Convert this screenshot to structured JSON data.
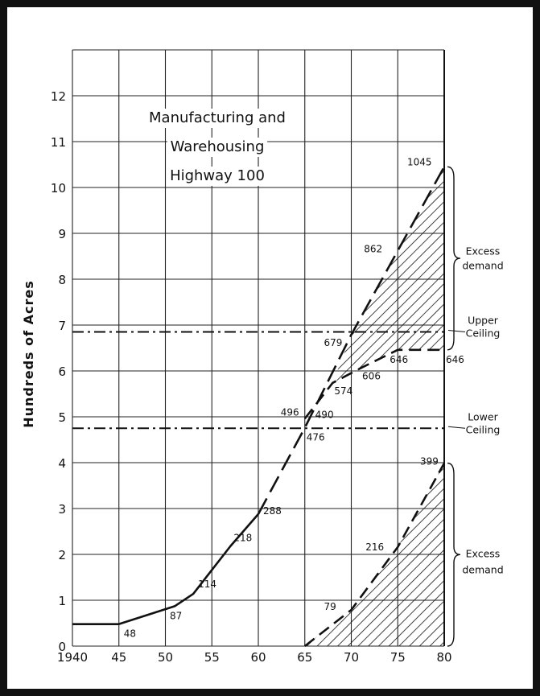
{
  "chart_data": {
    "type": "line",
    "title_lines": [
      "Manufacturing and",
      "Warehousing",
      "Highway 100"
    ],
    "ylabel": "Hundreds of Acres",
    "xlabel": "",
    "xlim": [
      1940,
      1980
    ],
    "ylim": [
      0,
      13
    ],
    "x_ticks": [
      {
        "value": 1940,
        "label": "1940"
      },
      {
        "value": 1945,
        "label": "45"
      },
      {
        "value": 1950,
        "label": "50"
      },
      {
        "value": 1955,
        "label": "55"
      },
      {
        "value": 1960,
        "label": "60"
      },
      {
        "value": 1965,
        "label": "65"
      },
      {
        "value": 1970,
        "label": "70"
      },
      {
        "value": 1975,
        "label": "75"
      },
      {
        "value": 1980,
        "label": "80"
      }
    ],
    "y_ticks": [
      {
        "value": 0,
        "label": "0"
      },
      {
        "value": 1,
        "label": "1"
      },
      {
        "value": 2,
        "label": "2"
      },
      {
        "value": 3,
        "label": "3"
      },
      {
        "value": 4,
        "label": "4"
      },
      {
        "value": 5,
        "label": "5"
      },
      {
        "value": 6,
        "label": "6"
      },
      {
        "value": 7,
        "label": "7"
      },
      {
        "value": 8,
        "label": "8"
      },
      {
        "value": 9,
        "label": "9"
      },
      {
        "value": 10,
        "label": "10"
      },
      {
        "value": 11,
        "label": "11"
      },
      {
        "value": 12,
        "label": "12"
      }
    ],
    "grid": true,
    "series": [
      {
        "style": "solid",
        "points": [
          {
            "x": 1940,
            "y": 0.48,
            "label": ""
          },
          {
            "x": 1945,
            "y": 0.48,
            "label": "48"
          },
          {
            "x": 1951,
            "y": 0.87,
            "label": "87"
          },
          {
            "x": 1953,
            "y": 1.14,
            "label": "114"
          },
          {
            "x": 1957,
            "y": 2.18,
            "label": "218"
          },
          {
            "x": 1960,
            "y": 2.88,
            "label": "288"
          }
        ]
      },
      {
        "style": "long-dash",
        "points": [
          {
            "x": 1960,
            "y": 2.88,
            "label": ""
          },
          {
            "x": 1965,
            "y": 4.76,
            "label": "476"
          },
          {
            "x": 1970,
            "y": 6.79,
            "label": "679"
          },
          {
            "x": 1975,
            "y": 8.62,
            "label": "862"
          },
          {
            "x": 1980,
            "y": 10.45,
            "label": "1045"
          }
        ]
      },
      {
        "style": "dash",
        "points": [
          {
            "x": 1965,
            "y": 4.96,
            "label": "496"
          },
          {
            "x": 1968,
            "y": 5.74,
            "label": "574"
          },
          {
            "x": 1971,
            "y": 6.06,
            "label": "606"
          },
          {
            "x": 1975,
            "y": 6.46,
            "label": "646"
          },
          {
            "x": 1980,
            "y": 6.46,
            "label": "646"
          }
        ]
      },
      {
        "style": "dash",
        "points": [
          {
            "x": 1965,
            "y": 0,
            "label": ""
          },
          {
            "x": 1970,
            "y": 0.79,
            "label": "79"
          },
          {
            "x": 1975,
            "y": 2.16,
            "label": "216"
          },
          {
            "x": 1980,
            "y": 3.99,
            "label": "399"
          }
        ]
      }
    ],
    "extra_labels": [
      {
        "x": 1965.6,
        "y": 4.9,
        "label": "490"
      }
    ],
    "reference_lines": [
      {
        "y": 6.85,
        "label": [
          "Upper",
          "Ceiling"
        ]
      },
      {
        "y": 4.75,
        "label": [
          "Lower",
          "Ceiling"
        ]
      }
    ],
    "shaded_regions_label": [
      "Excess",
      "demand"
    ]
  }
}
